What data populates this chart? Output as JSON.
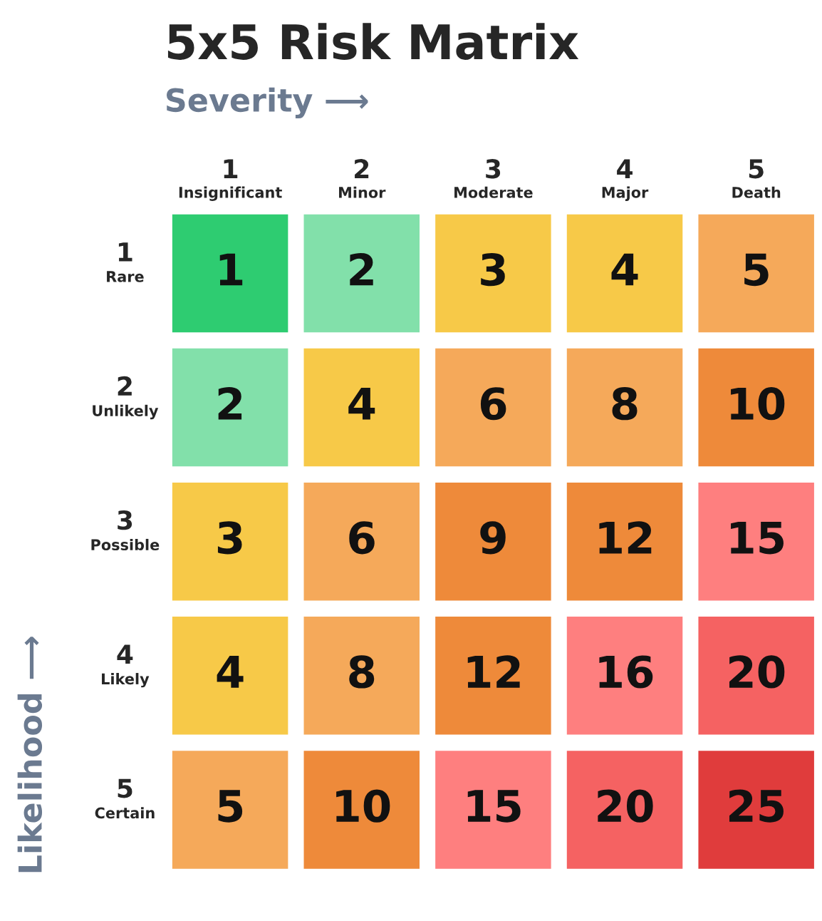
{
  "chart_data": {
    "type": "heatmap",
    "title": "5x5 Risk Matrix",
    "xlabel": "Severity ⟶",
    "ylabel": "Likelihood ⟶",
    "categories": [
      "1\nInsignificant",
      "2\nMinor",
      "3\nModerate",
      "4\nMajor",
      "5\nDeath"
    ],
    "y_categories": [
      "1\nRare",
      "2\nUnlikely",
      "3\nPossible",
      "4\nLikely",
      "5\nCertain"
    ],
    "cells": [
      [
        1,
        2,
        3,
        4,
        5
      ],
      [
        2,
        4,
        6,
        8,
        10
      ],
      [
        3,
        6,
        9,
        12,
        15
      ],
      [
        4,
        8,
        12,
        16,
        20
      ],
      [
        5,
        10,
        15,
        20,
        25
      ]
    ],
    "colors": [
      [
        "#2ecc71",
        "#82e0aa",
        "#f7c948",
        "#f7c948",
        "#f5a95a"
      ],
      [
        "#82e0aa",
        "#f7c948",
        "#f5a95a",
        "#f5a95a",
        "#ee8a3a"
      ],
      [
        "#f7c948",
        "#f5a95a",
        "#ee8a3a",
        "#ee8a3a",
        "#fe7f7f"
      ],
      [
        "#f7c948",
        "#f5a95a",
        "#ee8a3a",
        "#fe7f7f",
        "#f56262"
      ],
      [
        "#f5a95a",
        "#ee8a3a",
        "#fe7f7f",
        "#f56262",
        "#e03c3c"
      ]
    ],
    "data_labels": true
  }
}
